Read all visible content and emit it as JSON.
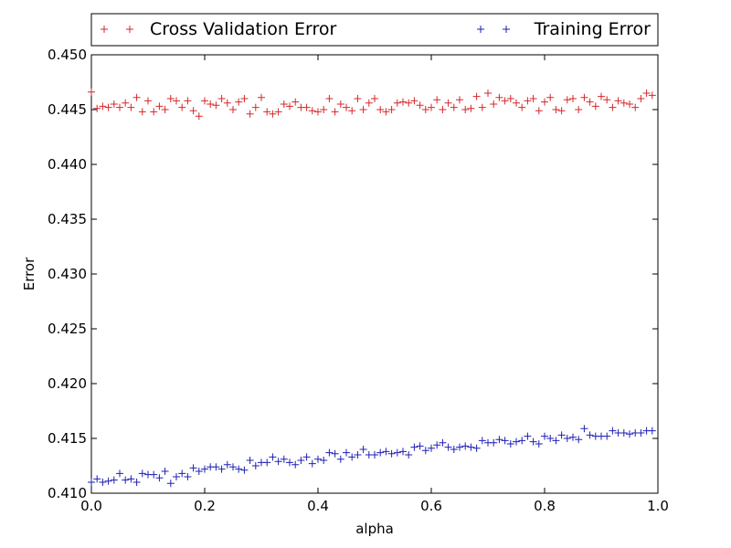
{
  "chart_data": {
    "type": "scatter",
    "title": "",
    "xlabel": "alpha",
    "ylabel": "Error",
    "xlim": [
      0.0,
      1.0
    ],
    "ylim": [
      0.41,
      0.45
    ],
    "x_ticks": [
      "0.0",
      "0.2",
      "0.4",
      "0.6",
      "0.8",
      "1.0"
    ],
    "y_ticks": [
      "0.410",
      "0.415",
      "0.420",
      "0.425",
      "0.430",
      "0.435",
      "0.440",
      "0.445",
      "0.450"
    ],
    "grid": false,
    "legend_placement": "top, outside plot, two columns",
    "marker": "+",
    "series": [
      {
        "name": "Cross Validation Error",
        "color": "#d62728",
        "x": [
          0.0,
          0.01,
          0.02,
          0.03,
          0.04,
          0.05,
          0.06,
          0.07,
          0.08,
          0.09,
          0.1,
          0.11,
          0.12,
          0.13,
          0.14,
          0.15,
          0.16,
          0.17,
          0.18,
          0.19,
          0.2,
          0.21,
          0.22,
          0.23,
          0.24,
          0.25,
          0.26,
          0.27,
          0.28,
          0.29,
          0.3,
          0.31,
          0.32,
          0.33,
          0.34,
          0.35,
          0.36,
          0.37,
          0.38,
          0.39,
          0.4,
          0.41,
          0.42,
          0.43,
          0.44,
          0.45,
          0.46,
          0.47,
          0.48,
          0.49,
          0.5,
          0.51,
          0.52,
          0.53,
          0.54,
          0.55,
          0.56,
          0.57,
          0.58,
          0.59,
          0.6,
          0.61,
          0.62,
          0.63,
          0.64,
          0.65,
          0.66,
          0.67,
          0.68,
          0.69,
          0.7,
          0.71,
          0.72,
          0.73,
          0.74,
          0.75,
          0.76,
          0.77,
          0.78,
          0.79,
          0.8,
          0.81,
          0.82,
          0.83,
          0.84,
          0.85,
          0.86,
          0.87,
          0.88,
          0.89,
          0.9,
          0.91,
          0.92,
          0.93,
          0.94,
          0.95,
          0.96,
          0.97,
          0.98,
          0.99
        ],
        "y": [
          0.4466,
          0.4451,
          0.4453,
          0.4452,
          0.4455,
          0.4452,
          0.4456,
          0.4452,
          0.4461,
          0.4448,
          0.4458,
          0.4448,
          0.4453,
          0.445,
          0.446,
          0.4458,
          0.4452,
          0.4458,
          0.4449,
          0.4444,
          0.4458,
          0.4455,
          0.4454,
          0.446,
          0.4456,
          0.445,
          0.4457,
          0.446,
          0.4446,
          0.4452,
          0.4461,
          0.4448,
          0.4446,
          0.4448,
          0.4455,
          0.4453,
          0.4457,
          0.4452,
          0.4452,
          0.4449,
          0.4448,
          0.445,
          0.446,
          0.4448,
          0.4455,
          0.4452,
          0.4449,
          0.446,
          0.445,
          0.4456,
          0.446,
          0.445,
          0.4448,
          0.445,
          0.4456,
          0.4457,
          0.4456,
          0.4458,
          0.4454,
          0.445,
          0.4452,
          0.4459,
          0.445,
          0.4456,
          0.4452,
          0.4459,
          0.445,
          0.4451,
          0.4462,
          0.4452,
          0.4465,
          0.4455,
          0.4461,
          0.4458,
          0.446,
          0.4456,
          0.4452,
          0.4458,
          0.446,
          0.4449,
          0.4457,
          0.4461,
          0.445,
          0.4449,
          0.4459,
          0.446,
          0.445,
          0.4461,
          0.4457,
          0.4453,
          0.4462,
          0.4459,
          0.4452,
          0.4458,
          0.4456,
          0.4455,
          0.4452,
          0.446,
          0.4465,
          0.4463
        ]
      },
      {
        "name": "Training Error",
        "color": "#1f1fb4",
        "x": [
          0.0,
          0.01,
          0.02,
          0.03,
          0.04,
          0.05,
          0.06,
          0.07,
          0.08,
          0.09,
          0.1,
          0.11,
          0.12,
          0.13,
          0.14,
          0.15,
          0.16,
          0.17,
          0.18,
          0.19,
          0.2,
          0.21,
          0.22,
          0.23,
          0.24,
          0.25,
          0.26,
          0.27,
          0.28,
          0.29,
          0.3,
          0.31,
          0.32,
          0.33,
          0.34,
          0.35,
          0.36,
          0.37,
          0.38,
          0.39,
          0.4,
          0.41,
          0.42,
          0.43,
          0.44,
          0.45,
          0.46,
          0.47,
          0.48,
          0.49,
          0.5,
          0.51,
          0.52,
          0.53,
          0.54,
          0.55,
          0.56,
          0.57,
          0.58,
          0.59,
          0.6,
          0.61,
          0.62,
          0.63,
          0.64,
          0.65,
          0.66,
          0.67,
          0.68,
          0.69,
          0.7,
          0.71,
          0.72,
          0.73,
          0.74,
          0.75,
          0.76,
          0.77,
          0.78,
          0.79,
          0.8,
          0.81,
          0.82,
          0.83,
          0.84,
          0.85,
          0.86,
          0.87,
          0.88,
          0.89,
          0.9,
          0.91,
          0.92,
          0.93,
          0.94,
          0.95,
          0.96,
          0.97,
          0.98,
          0.99
        ],
        "y": [
          0.411,
          0.4113,
          0.411,
          0.4111,
          0.4112,
          0.4118,
          0.4112,
          0.4113,
          0.411,
          0.4118,
          0.4117,
          0.4117,
          0.4114,
          0.412,
          0.4109,
          0.4115,
          0.4118,
          0.4115,
          0.4123,
          0.412,
          0.4122,
          0.4124,
          0.4124,
          0.4122,
          0.4126,
          0.4124,
          0.4122,
          0.4121,
          0.413,
          0.4125,
          0.4128,
          0.4128,
          0.4133,
          0.4129,
          0.4131,
          0.4128,
          0.4126,
          0.413,
          0.4133,
          0.4127,
          0.4131,
          0.413,
          0.4137,
          0.4136,
          0.4131,
          0.4137,
          0.4133,
          0.4135,
          0.414,
          0.4135,
          0.4135,
          0.4137,
          0.4138,
          0.4136,
          0.4137,
          0.4138,
          0.4135,
          0.4142,
          0.4143,
          0.4139,
          0.4141,
          0.4144,
          0.4146,
          0.4142,
          0.414,
          0.4142,
          0.4143,
          0.4142,
          0.4141,
          0.4148,
          0.4146,
          0.4146,
          0.4149,
          0.4148,
          0.4145,
          0.4147,
          0.4148,
          0.4152,
          0.4147,
          0.4145,
          0.4152,
          0.415,
          0.4148,
          0.4153,
          0.415,
          0.4151,
          0.4149,
          0.4159,
          0.4153,
          0.4152,
          0.4152,
          0.4152,
          0.4157,
          0.4155,
          0.4155,
          0.4154,
          0.4155,
          0.4155,
          0.4157,
          0.4157
        ]
      }
    ]
  }
}
